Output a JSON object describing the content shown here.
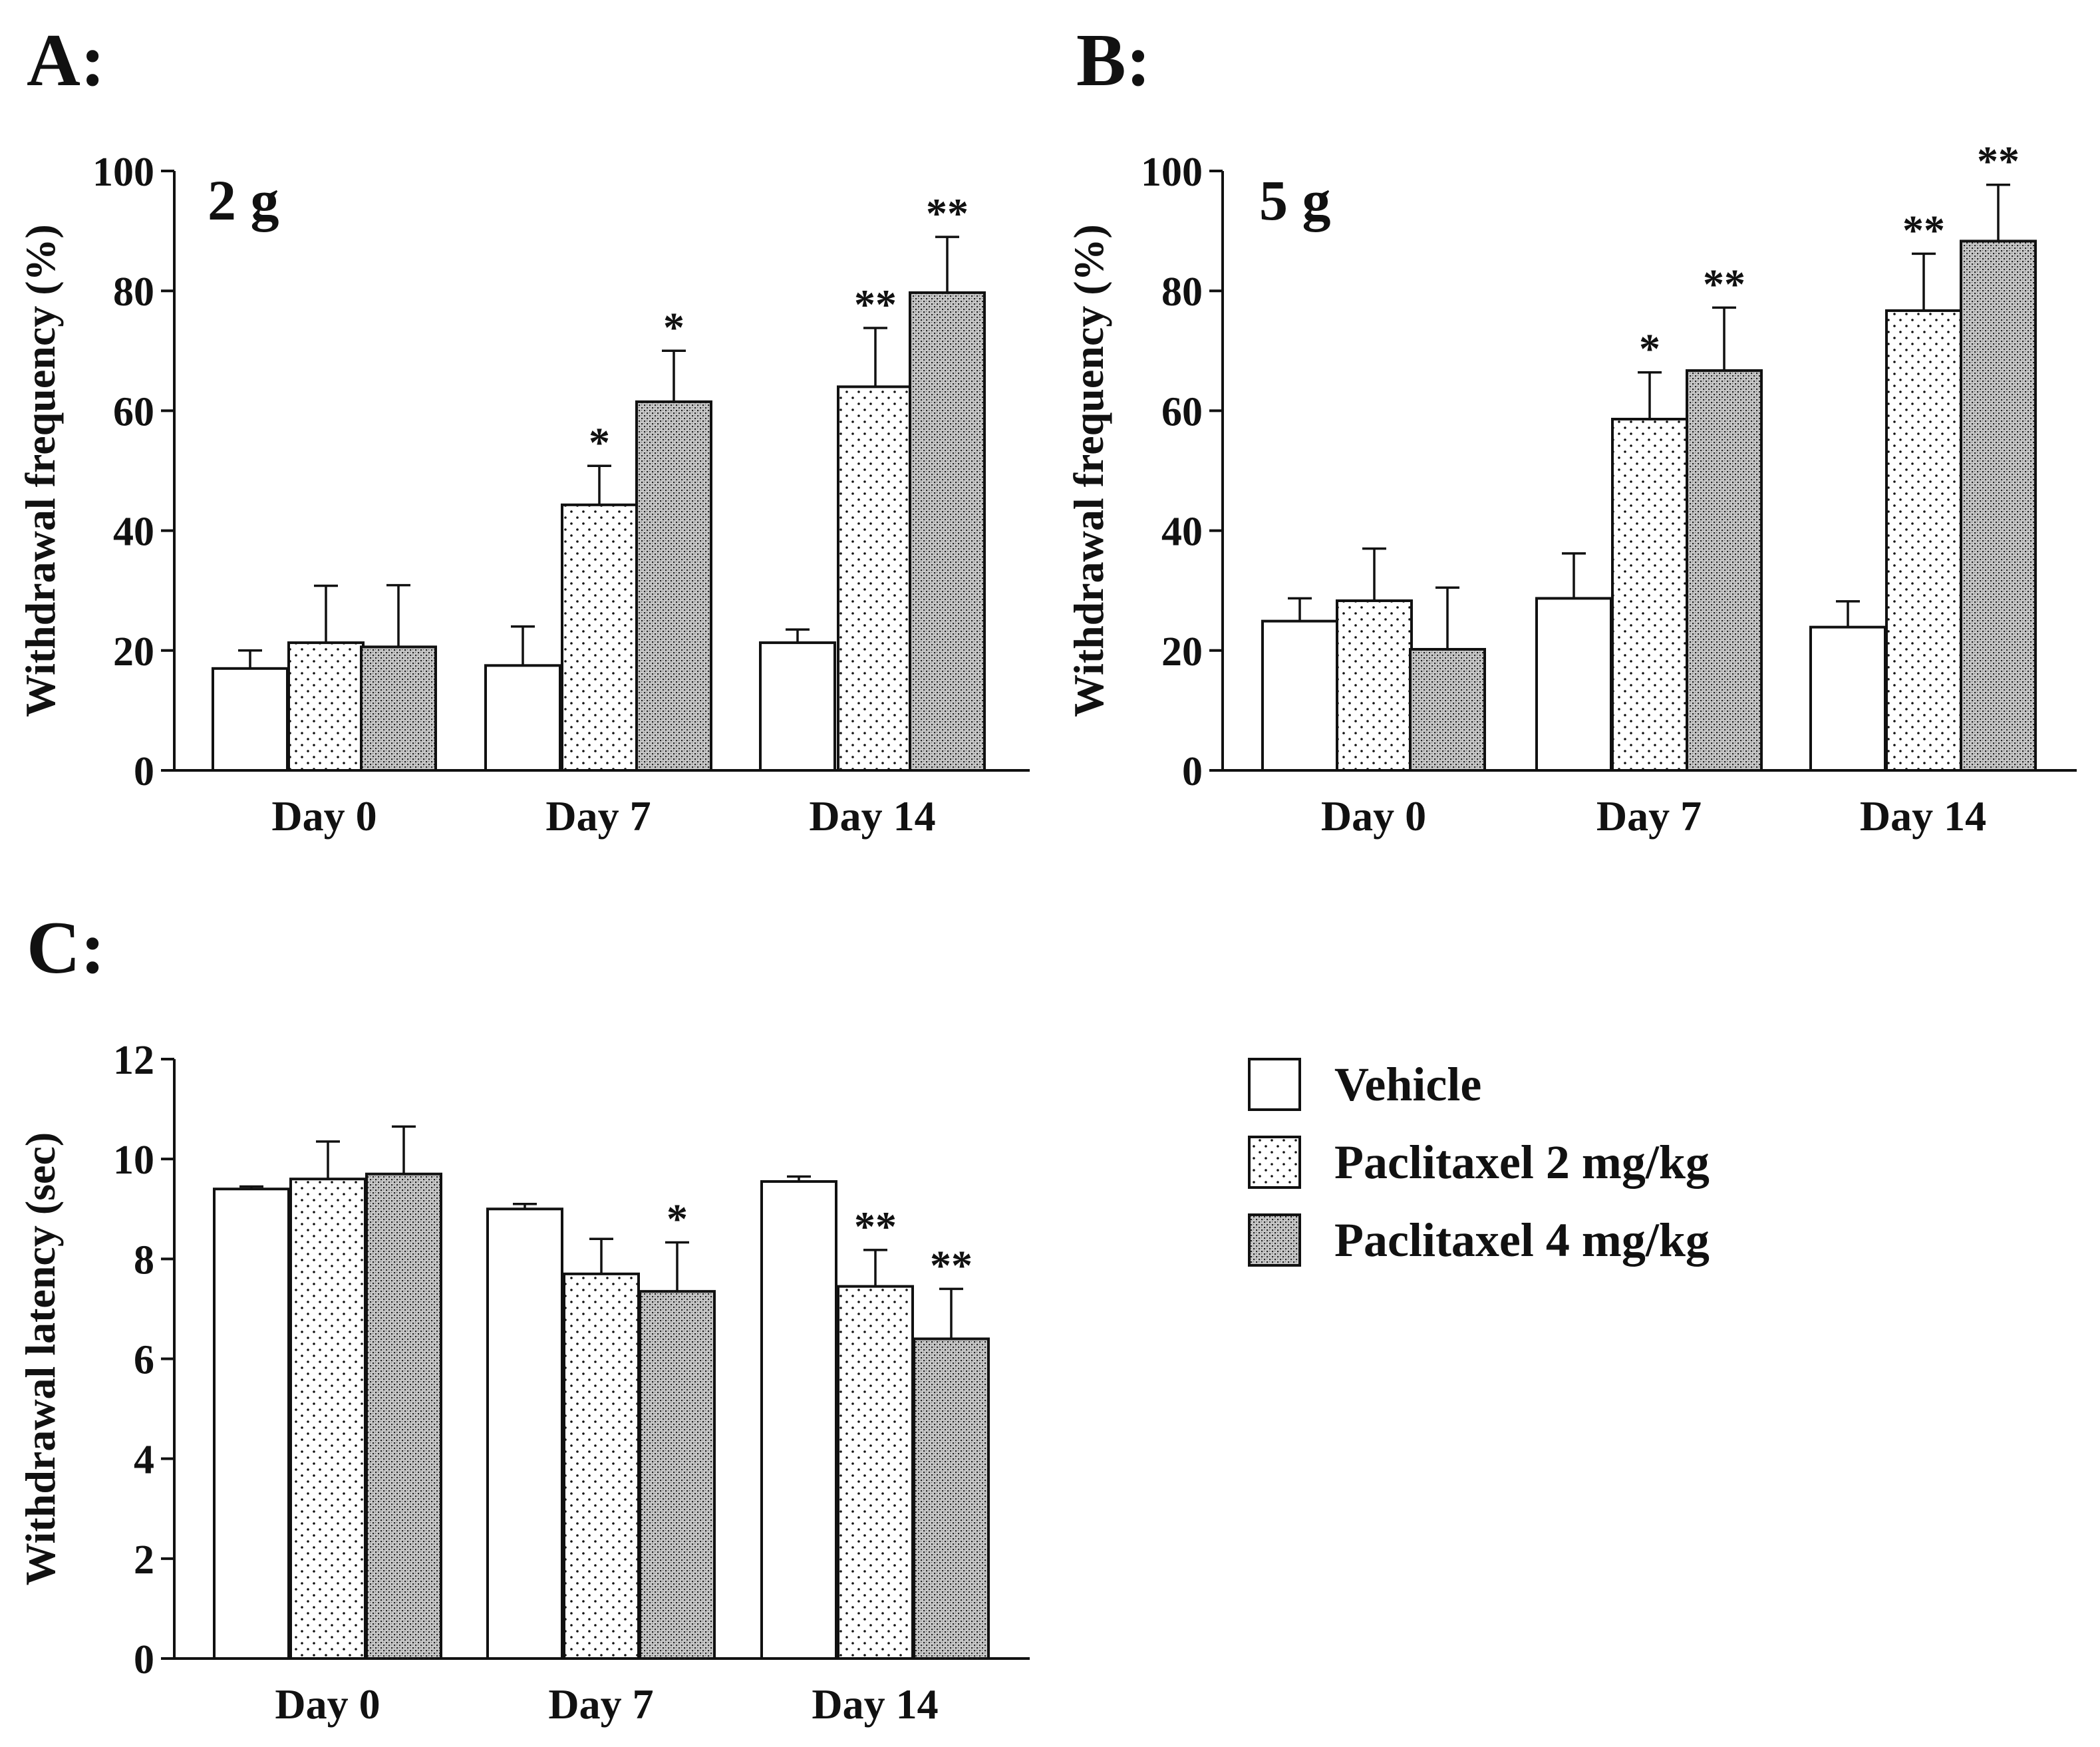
{
  "legend": {
    "placement": "right of panel C",
    "items": [
      {
        "label": "Vehicle",
        "pattern": "open"
      },
      {
        "label": "Paclitaxel 2 mg/kg",
        "pattern": "sparse-dots"
      },
      {
        "label": "Paclitaxel 4 mg/kg",
        "pattern": "dense-crosshatch"
      }
    ]
  },
  "colors": {
    "ink": "#111111",
    "background": "#ffffff"
  },
  "chart_data": [
    {
      "panel_label": "A:",
      "inset_label": "2 g",
      "type": "bar",
      "ylabel": "Withdrawal frequency (%)",
      "ylim": [
        0,
        100
      ],
      "yticks": [
        "0",
        "20",
        "40",
        "60",
        "80",
        "100"
      ],
      "categories": [
        "Day 0",
        "Day 7",
        "Day 14"
      ],
      "grid": false,
      "series": [
        {
          "name": "Vehicle",
          "values": [
            17,
            17.5,
            21.3
          ],
          "errors": [
            3,
            6.5,
            2.2
          ],
          "sig": [
            "",
            "",
            ""
          ]
        },
        {
          "name": "Paclitaxel 2 mg/kg",
          "values": [
            21.3,
            44.3,
            64
          ],
          "errors": [
            9.5,
            6.5,
            9.8
          ],
          "sig": [
            "",
            "*",
            "**"
          ]
        },
        {
          "name": "Paclitaxel 4 mg/kg",
          "values": [
            20.6,
            61.5,
            79.7
          ],
          "errors": [
            10.3,
            8.5,
            9.3
          ],
          "sig": [
            "",
            "*",
            "**"
          ]
        }
      ]
    },
    {
      "panel_label": "B:",
      "inset_label": "5 g",
      "type": "bar",
      "ylabel": "Withdrawal frequency (%)",
      "ylim": [
        0,
        100
      ],
      "yticks": [
        "0",
        "20",
        "40",
        "60",
        "80",
        "100"
      ],
      "categories": [
        "Day 0",
        "Day 7",
        "Day 14"
      ],
      "grid": false,
      "series": [
        {
          "name": "Vehicle",
          "values": [
            24.9,
            28.7,
            23.9
          ],
          "errors": [
            3.8,
            7.5,
            4.3
          ],
          "sig": [
            "",
            "",
            ""
          ]
        },
        {
          "name": "Paclitaxel 2 mg/kg",
          "values": [
            28.3,
            58.6,
            76.7
          ],
          "errors": [
            8.7,
            7.8,
            9.5
          ],
          "sig": [
            "",
            "*",
            "**"
          ]
        },
        {
          "name": "Paclitaxel 4 mg/kg",
          "values": [
            20.2,
            66.7,
            88.3
          ],
          "errors": [
            10.3,
            10.5,
            9.4
          ],
          "sig": [
            "",
            "**",
            "**"
          ]
        }
      ]
    },
    {
      "panel_label": "C:",
      "inset_label": "",
      "type": "bar",
      "ylabel": "Withdrawal latency (sec)",
      "ylim": [
        0,
        12
      ],
      "yticks": [
        "0",
        "2",
        "4",
        "6",
        "8",
        "10",
        "12"
      ],
      "categories": [
        "Day 0",
        "Day 7",
        "Day 14"
      ],
      "grid": false,
      "series": [
        {
          "name": "Vehicle",
          "values": [
            9.4,
            9.0,
            9.55
          ],
          "errors": [
            0.05,
            0.1,
            0.1
          ],
          "sig": [
            "",
            "",
            ""
          ]
        },
        {
          "name": "Paclitaxel 2 mg/kg",
          "values": [
            9.6,
            7.7,
            7.45
          ],
          "errors": [
            0.75,
            0.7,
            0.73
          ],
          "sig": [
            "",
            "",
            "**"
          ]
        },
        {
          "name": "Paclitaxel 4 mg/kg",
          "values": [
            9.7,
            7.35,
            6.4
          ],
          "errors": [
            0.95,
            0.98,
            1.0
          ],
          "sig": [
            "",
            "*",
            "**"
          ]
        }
      ]
    }
  ]
}
